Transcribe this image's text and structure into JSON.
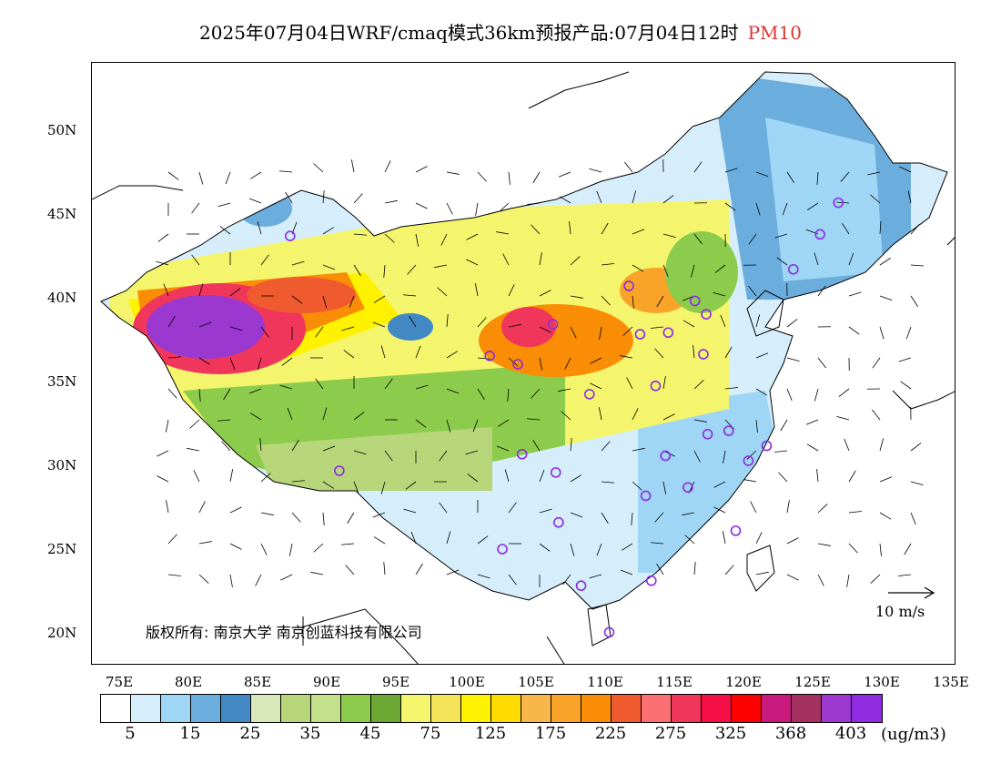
{
  "title": {
    "main": "2025年07月04日WRF/cmaq模式36km预报产品:07月04日12时",
    "parameter": "PM10",
    "parameter_color": "#e0342f"
  },
  "axes": {
    "latitude_ticks": [
      "50N",
      "45N",
      "40N",
      "35N",
      "30N",
      "25N",
      "20N"
    ],
    "longitude_ticks": [
      "75E",
      "80E",
      "85E",
      "90E",
      "95E",
      "100E",
      "105E",
      "110E",
      "115E",
      "120E",
      "125E",
      "130E",
      "135E"
    ]
  },
  "copyright": "版权所有: 南京大学 南京创蓝科技有限公司",
  "wind_reference": "10 m/s",
  "colorbar": {
    "colors": [
      "#ffffff",
      "#d6eefb",
      "#a0d6f5",
      "#6baede",
      "#4289c4",
      "#d9e8b8",
      "#b7d67a",
      "#c3e08a",
      "#8ccb4b",
      "#6ea834",
      "#f4f56c",
      "#f3e45a",
      "#fff200",
      "#fedc00",
      "#f8b748",
      "#f9a429",
      "#f98d06",
      "#ef5a2f",
      "#fb6f73",
      "#f0365a",
      "#f50f47",
      "#fd0000",
      "#c81a7d",
      "#a3305e",
      "#9b38d0",
      "#8f2ce0"
    ],
    "labels": [
      "5",
      "15",
      "25",
      "35",
      "45",
      "75",
      "125",
      "175",
      "225",
      "275",
      "325",
      "368",
      "403"
    ],
    "unit": "(ug/m3)"
  },
  "stations": [
    {
      "lon": 87.6,
      "lat": 43.8
    },
    {
      "lon": 91.1,
      "lat": 29.7
    },
    {
      "lon": 101.8,
      "lat": 36.6
    },
    {
      "lon": 103.8,
      "lat": 36.1
    },
    {
      "lon": 106.3,
      "lat": 38.5
    },
    {
      "lon": 111.7,
      "lat": 40.8
    },
    {
      "lon": 112.5,
      "lat": 37.9
    },
    {
      "lon": 114.5,
      "lat": 38.0
    },
    {
      "lon": 116.4,
      "lat": 39.9
    },
    {
      "lon": 117.2,
      "lat": 39.1
    },
    {
      "lon": 117.0,
      "lat": 36.7
    },
    {
      "lon": 113.6,
      "lat": 34.8
    },
    {
      "lon": 108.9,
      "lat": 34.3
    },
    {
      "lon": 104.1,
      "lat": 30.7
    },
    {
      "lon": 106.5,
      "lat": 29.6
    },
    {
      "lon": 114.3,
      "lat": 30.6
    },
    {
      "lon": 117.3,
      "lat": 31.9
    },
    {
      "lon": 118.8,
      "lat": 32.1
    },
    {
      "lon": 121.5,
      "lat": 31.2
    },
    {
      "lon": 120.2,
      "lat": 30.3
    },
    {
      "lon": 112.9,
      "lat": 28.2
    },
    {
      "lon": 115.9,
      "lat": 28.7
    },
    {
      "lon": 119.3,
      "lat": 26.1
    },
    {
      "lon": 106.7,
      "lat": 26.6
    },
    {
      "lon": 102.7,
      "lat": 25.0
    },
    {
      "lon": 108.3,
      "lat": 22.8
    },
    {
      "lon": 113.3,
      "lat": 23.1
    },
    {
      "lon": 110.3,
      "lat": 20.0
    },
    {
      "lon": 123.4,
      "lat": 41.8
    },
    {
      "lon": 125.3,
      "lat": 43.9
    },
    {
      "lon": 126.6,
      "lat": 45.8
    }
  ]
}
